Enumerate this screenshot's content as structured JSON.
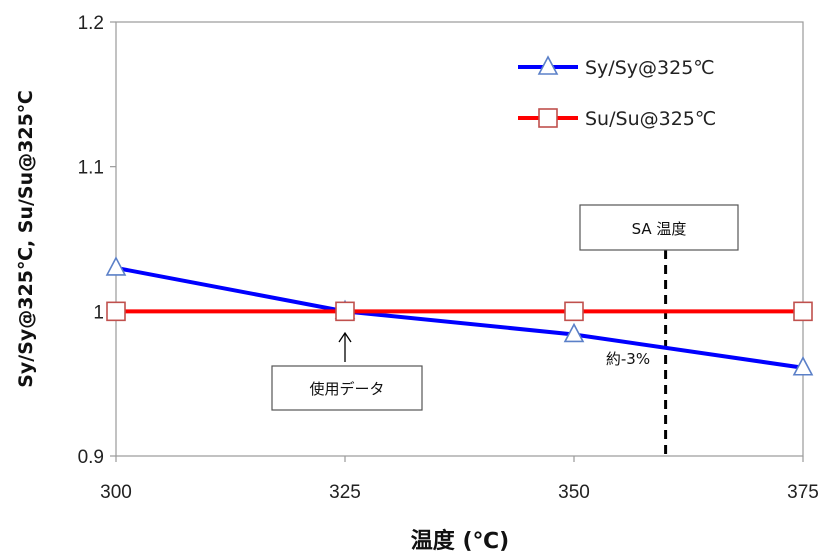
{
  "chart_data": {
    "type": "line",
    "x": [
      300,
      325,
      350,
      375
    ],
    "xlim": [
      300,
      375
    ],
    "ylim": [
      0.9,
      1.2
    ],
    "x_ticks": [
      "300",
      "325",
      "350",
      "375"
    ],
    "y_ticks": [
      "0.9",
      "1",
      "1.1",
      "1.2"
    ],
    "xlabel": "温度 (℃)",
    "ylabel": "Sy/Sy@325℃, Su/Su@325℃",
    "grid": false,
    "legend_position": "top-right",
    "series": [
      {
        "name": "Sy/Sy@325℃",
        "color": "#0000ff",
        "marker": "triangle",
        "values": [
          1.03,
          1.0,
          0.984,
          0.961
        ]
      },
      {
        "name": "Su/Su@325℃",
        "color": "#ff0000",
        "marker": "square",
        "values": [
          1.0,
          1.0,
          1.0,
          1.0
        ]
      }
    ],
    "annotations": {
      "sa_label": "SA 温度",
      "sa_x": 360,
      "used_data_label": "使用データ",
      "used_data_x": 325,
      "approx_label": "約-3%"
    }
  }
}
